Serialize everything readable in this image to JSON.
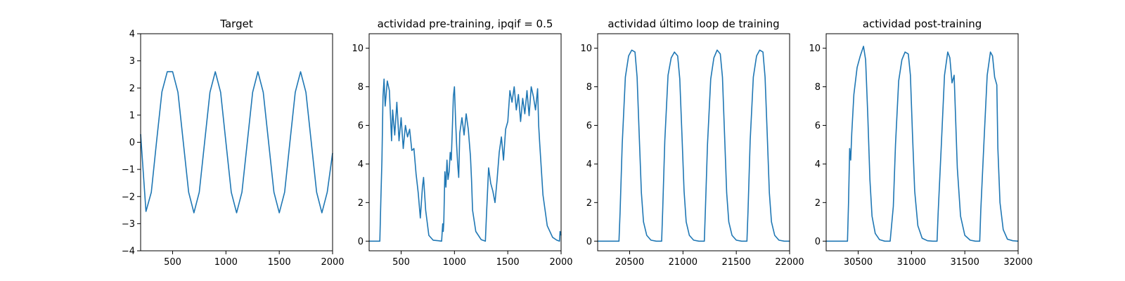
{
  "figure": {
    "background": "#ffffff",
    "line_color": "#1f77b4"
  },
  "chart_data": [
    {
      "type": "line",
      "title": "Target",
      "xlabel": "",
      "ylabel": "",
      "xlim": [
        200,
        2000
      ],
      "ylim": [
        -4,
        4
      ],
      "xticks": [
        500,
        1000,
        1500,
        2000
      ],
      "yticks": [
        -4,
        -3,
        -2,
        -1,
        0,
        1,
        2,
        3,
        4
      ],
      "series": [
        {
          "color": "#1f77b4",
          "x": [
            200,
            250,
            300,
            350,
            400,
            450,
            500,
            550,
            600,
            650,
            700,
            750,
            800,
            850,
            900,
            950,
            1000,
            1050,
            1100,
            1150,
            1200,
            1250,
            1300,
            1350,
            1400,
            1450,
            1500,
            1550,
            1600,
            1650,
            1700,
            1750,
            1800,
            1850,
            1900,
            1950,
            2000
          ],
          "y": [
            0.3,
            -2.55,
            -1.84,
            0.06,
            1.86,
            2.6,
            2.6,
            1.84,
            0.0,
            -1.84,
            -2.6,
            -1.84,
            0.0,
            1.84,
            2.6,
            1.84,
            0.0,
            -1.84,
            -2.6,
            -1.84,
            0.0,
            1.84,
            2.6,
            1.84,
            0.0,
            -1.84,
            -2.6,
            -1.84,
            0.0,
            1.84,
            2.6,
            1.84,
            0.0,
            -1.84,
            -2.6,
            -1.84,
            -0.4
          ]
        }
      ]
    },
    {
      "type": "line",
      "title": "actividad pre-training, ipqif = 0.5",
      "xlabel": "",
      "ylabel": "",
      "xlim": [
        200,
        2000
      ],
      "ylim": [
        -0.5,
        10.75
      ],
      "xticks": [
        500,
        1000,
        1500,
        2000
      ],
      "yticks": [
        0,
        2,
        4,
        6,
        8,
        10
      ],
      "series": [
        {
          "color": "#1f77b4",
          "x": [
            200,
            300,
            310,
            320,
            330,
            340,
            350,
            370,
            390,
            410,
            420,
            440,
            460,
            480,
            500,
            520,
            540,
            560,
            580,
            600,
            620,
            640,
            660,
            680,
            700,
            710,
            730,
            760,
            800,
            850,
            880,
            890,
            895,
            900,
            910,
            920,
            930,
            940,
            950,
            960,
            970,
            980,
            990,
            1000,
            1010,
            1020,
            1030,
            1040,
            1050,
            1070,
            1090,
            1110,
            1130,
            1150,
            1160,
            1170,
            1200,
            1250,
            1290,
            1300,
            1320,
            1340,
            1360,
            1380,
            1400,
            1420,
            1440,
            1460,
            1480,
            1500,
            1520,
            1540,
            1560,
            1580,
            1600,
            1620,
            1640,
            1660,
            1680,
            1700,
            1720,
            1740,
            1760,
            1780,
            1790,
            1800,
            1830,
            1870,
            1920,
            1960,
            1985,
            1990,
            2000
          ],
          "y": [
            0,
            0,
            2.2,
            4.2,
            7.5,
            8.4,
            7.0,
            8.3,
            7.8,
            5.2,
            6.8,
            5.5,
            7.2,
            5.2,
            6.4,
            4.8,
            6.0,
            5.4,
            5.8,
            4.7,
            4.8,
            3.5,
            2.5,
            1.2,
            2.8,
            3.3,
            1.6,
            0.3,
            0.05,
            0.02,
            0.0,
            0.9,
            0.5,
            1.0,
            3.6,
            2.8,
            4.2,
            3.2,
            3.6,
            4.6,
            4.2,
            5.8,
            7.5,
            8.0,
            6.3,
            5.0,
            4.0,
            3.3,
            5.6,
            6.4,
            5.5,
            6.6,
            5.8,
            4.4,
            3.2,
            1.6,
            0.5,
            0.08,
            0.0,
            1.3,
            3.8,
            3.0,
            2.6,
            2.0,
            3.2,
            4.6,
            5.4,
            4.2,
            5.8,
            6.2,
            7.8,
            7.2,
            8.0,
            6.8,
            7.6,
            6.2,
            7.4,
            6.6,
            7.8,
            6.5,
            8.0,
            7.5,
            6.8,
            7.9,
            6.0,
            5.0,
            2.4,
            0.8,
            0.2,
            0.05,
            0.0,
            0.5,
            0.3
          ]
        }
      ]
    },
    {
      "type": "line",
      "title": "actividad último loop de training",
      "xlabel": "",
      "ylabel": "",
      "xlim": [
        20200,
        22000
      ],
      "ylim": [
        -0.5,
        10.75
      ],
      "xticks": [
        20500,
        21000,
        21500,
        22000
      ],
      "yticks": [
        0,
        2,
        4,
        6,
        8,
        10
      ],
      "series": [
        {
          "color": "#1f77b4",
          "x": [
            20200,
            20400,
            20410,
            20430,
            20460,
            20490,
            20520,
            20550,
            20570,
            20590,
            20610,
            20630,
            20660,
            20700,
            20750,
            20800,
            20810,
            20830,
            20860,
            20890,
            20920,
            20950,
            20970,
            20990,
            21010,
            21030,
            21060,
            21100,
            21150,
            21200,
            21210,
            21230,
            21260,
            21290,
            21320,
            21350,
            21370,
            21390,
            21410,
            21430,
            21460,
            21500,
            21550,
            21600,
            21610,
            21630,
            21660,
            21690,
            21720,
            21750,
            21770,
            21790,
            21810,
            21830,
            21860,
            21900,
            21950,
            22000
          ],
          "y": [
            0,
            0,
            1.5,
            5.0,
            8.5,
            9.6,
            9.9,
            9.8,
            8.5,
            5.5,
            2.5,
            1.0,
            0.3,
            0.05,
            0.0,
            0.0,
            1.6,
            5.2,
            8.6,
            9.5,
            9.8,
            9.6,
            8.4,
            5.6,
            2.6,
            1.0,
            0.3,
            0.05,
            0.0,
            0.0,
            1.6,
            5.0,
            8.4,
            9.5,
            9.9,
            9.7,
            8.5,
            5.5,
            2.5,
            1.0,
            0.3,
            0.05,
            0.0,
            0.0,
            1.5,
            5.2,
            8.5,
            9.6,
            9.9,
            9.8,
            8.5,
            5.5,
            2.5,
            1.0,
            0.3,
            0.05,
            0.0,
            0.0
          ]
        }
      ]
    },
    {
      "type": "line",
      "title": "actividad post-training",
      "xlabel": "",
      "ylabel": "",
      "xlim": [
        30200,
        32000
      ],
      "ylim": [
        -0.5,
        10.75
      ],
      "xticks": [
        30500,
        31000,
        31500,
        32000
      ],
      "yticks": [
        0,
        2,
        4,
        6,
        8,
        10
      ],
      "series": [
        {
          "color": "#1f77b4",
          "x": [
            30200,
            30400,
            30410,
            30420,
            30430,
            30440,
            30460,
            30490,
            30520,
            30550,
            30570,
            30590,
            30610,
            30630,
            30660,
            30700,
            30750,
            30800,
            30830,
            30850,
            30880,
            30910,
            30940,
            30970,
            30990,
            31010,
            31030,
            31060,
            31100,
            31150,
            31200,
            31240,
            31250,
            31280,
            31310,
            31340,
            31360,
            31380,
            31400,
            31410,
            31430,
            31460,
            31500,
            31550,
            31600,
            31640,
            31650,
            31680,
            31710,
            31740,
            31760,
            31780,
            31800,
            31810,
            31830,
            31860,
            31900,
            31950,
            32000
          ],
          "y": [
            0,
            0,
            2.0,
            4.8,
            4.2,
            5.6,
            7.6,
            9.0,
            9.6,
            10.1,
            9.4,
            6.5,
            3.2,
            1.3,
            0.4,
            0.08,
            0.0,
            0.0,
            1.8,
            5.0,
            8.3,
            9.4,
            9.8,
            9.7,
            8.6,
            5.5,
            2.6,
            0.8,
            0.15,
            0.02,
            0.0,
            0.0,
            1.5,
            5.0,
            8.6,
            9.8,
            9.5,
            8.2,
            8.6,
            7.0,
            3.8,
            1.3,
            0.3,
            0.05,
            0.0,
            0.0,
            1.6,
            5.2,
            8.6,
            9.8,
            9.6,
            8.5,
            8.1,
            4.8,
            2.0,
            0.6,
            0.1,
            0.02,
            0.0
          ]
        }
      ]
    }
  ]
}
